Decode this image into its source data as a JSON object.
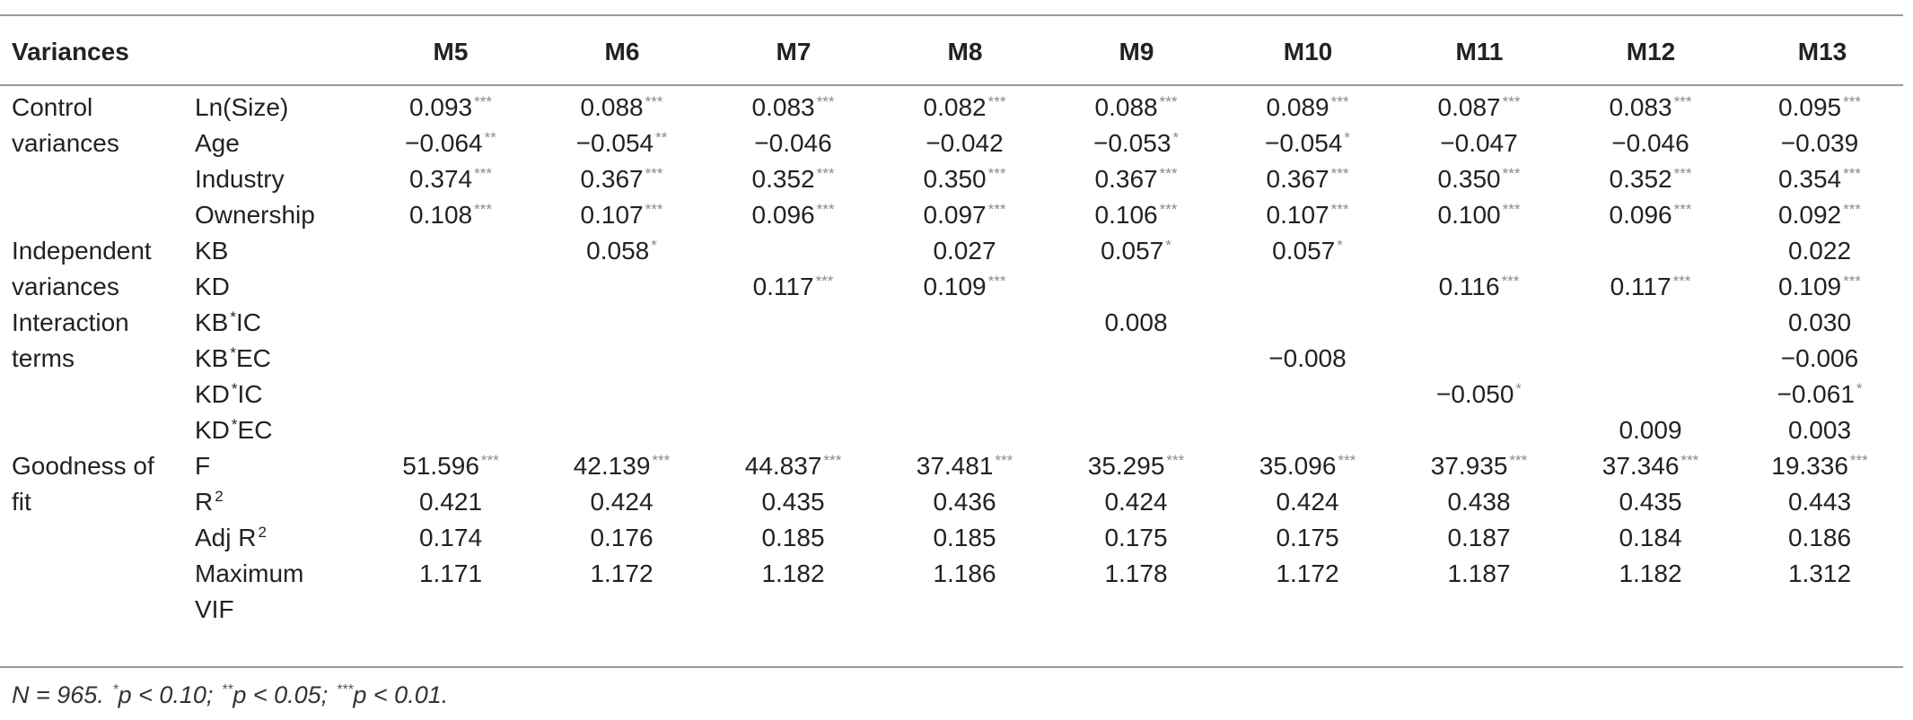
{
  "header": {
    "variances": "Variances",
    "models": [
      "M5",
      "M6",
      "M7",
      "M8",
      "M9",
      "M10",
      "M11",
      "M12",
      "M13"
    ]
  },
  "rows": [
    {
      "group": "Control",
      "label": "Ln(Size)",
      "cells": [
        [
          "0.093",
          "***"
        ],
        [
          "0.088",
          "***"
        ],
        [
          "0.083",
          "***"
        ],
        [
          "0.082",
          "***"
        ],
        [
          "0.088",
          "***"
        ],
        [
          "0.089",
          "***"
        ],
        [
          "0.087",
          "***"
        ],
        [
          "0.083",
          "***"
        ],
        [
          "0.095",
          "***"
        ]
      ]
    },
    {
      "group": "variances",
      "label": "Age",
      "cells": [
        [
          "−0.064",
          "**"
        ],
        [
          "−0.054",
          "**"
        ],
        [
          "−0.046",
          ""
        ],
        [
          "−0.042",
          ""
        ],
        [
          "−0.053",
          "*"
        ],
        [
          "−0.054",
          "*"
        ],
        [
          "−0.047",
          ""
        ],
        [
          "−0.046",
          ""
        ],
        [
          "−0.039",
          ""
        ]
      ]
    },
    {
      "group": "",
      "label": "Industry",
      "cells": [
        [
          "0.374",
          "***"
        ],
        [
          "0.367",
          "***"
        ],
        [
          "0.352",
          "***"
        ],
        [
          "0.350",
          "***"
        ],
        [
          "0.367",
          "***"
        ],
        [
          "0.367",
          "***"
        ],
        [
          "0.350",
          "***"
        ],
        [
          "0.352",
          "***"
        ],
        [
          "0.354",
          "***"
        ]
      ]
    },
    {
      "group": "",
      "label": "Ownership",
      "cells": [
        [
          "0.108",
          "***"
        ],
        [
          "0.107",
          "***"
        ],
        [
          "0.096",
          "***"
        ],
        [
          "0.097",
          "***"
        ],
        [
          "0.106",
          "***"
        ],
        [
          "0.107",
          "***"
        ],
        [
          "0.100",
          "***"
        ],
        [
          "0.096",
          "***"
        ],
        [
          "0.092",
          "***"
        ]
      ]
    },
    {
      "group": "Independent",
      "label": "KB",
      "cells": [
        [
          "",
          ""
        ],
        [
          "0.058",
          "*"
        ],
        [
          "",
          ""
        ],
        [
          "0.027",
          ""
        ],
        [
          "0.057",
          "*"
        ],
        [
          "0.057",
          "*"
        ],
        [
          "",
          ""
        ],
        [
          "",
          ""
        ],
        [
          "0.022",
          ""
        ]
      ]
    },
    {
      "group": "variances",
      "label": "KD",
      "cells": [
        [
          "",
          ""
        ],
        [
          "",
          ""
        ],
        [
          "0.117",
          "***"
        ],
        [
          "0.109",
          "***"
        ],
        [
          "",
          ""
        ],
        [
          "",
          ""
        ],
        [
          "0.116",
          "***"
        ],
        [
          "0.117",
          "***"
        ],
        [
          "0.109",
          "***"
        ]
      ]
    },
    {
      "group": "Interaction",
      "label": "KB*IC",
      "cells": [
        [
          "",
          ""
        ],
        [
          "",
          ""
        ],
        [
          "",
          ""
        ],
        [
          "",
          ""
        ],
        [
          "0.008",
          ""
        ],
        [
          "",
          ""
        ],
        [
          "",
          ""
        ],
        [
          "",
          ""
        ],
        [
          "0.030",
          ""
        ]
      ]
    },
    {
      "group": "terms",
      "label": "KB*EC",
      "cells": [
        [
          "",
          ""
        ],
        [
          "",
          ""
        ],
        [
          "",
          ""
        ],
        [
          "",
          ""
        ],
        [
          "",
          ""
        ],
        [
          "−0.008",
          ""
        ],
        [
          "",
          ""
        ],
        [
          "",
          ""
        ],
        [
          "−0.006",
          ""
        ]
      ]
    },
    {
      "group": "",
      "label": "KD*IC",
      "cells": [
        [
          "",
          ""
        ],
        [
          "",
          ""
        ],
        [
          "",
          ""
        ],
        [
          "",
          ""
        ],
        [
          "",
          ""
        ],
        [
          "",
          ""
        ],
        [
          "−0.050",
          "*"
        ],
        [
          "",
          ""
        ],
        [
          "−0.061",
          "*"
        ]
      ]
    },
    {
      "group": "",
      "label": "KD*EC",
      "cells": [
        [
          "",
          ""
        ],
        [
          "",
          ""
        ],
        [
          "",
          ""
        ],
        [
          "",
          ""
        ],
        [
          "",
          ""
        ],
        [
          "",
          ""
        ],
        [
          "",
          ""
        ],
        [
          "0.009",
          ""
        ],
        [
          "0.003",
          ""
        ]
      ]
    },
    {
      "group": "Goodness of",
      "label": "F",
      "cells": [
        [
          "51.596",
          "***"
        ],
        [
          "42.139",
          "***"
        ],
        [
          "44.837",
          "***"
        ],
        [
          "37.481",
          "***"
        ],
        [
          "35.295",
          "***"
        ],
        [
          "35.096",
          "***"
        ],
        [
          "37.935",
          "***"
        ],
        [
          "37.346",
          "***"
        ],
        [
          "19.336",
          "***"
        ]
      ]
    },
    {
      "group": "fit",
      "label": "R2",
      "cells": [
        [
          "0.421",
          ""
        ],
        [
          "0.424",
          ""
        ],
        [
          "0.435",
          ""
        ],
        [
          "0.436",
          ""
        ],
        [
          "0.424",
          ""
        ],
        [
          "0.424",
          ""
        ],
        [
          "0.438",
          ""
        ],
        [
          "0.435",
          ""
        ],
        [
          "0.443",
          ""
        ]
      ]
    },
    {
      "group": "",
      "label": "Adj R2",
      "cells": [
        [
          "0.174",
          ""
        ],
        [
          "0.176",
          ""
        ],
        [
          "0.185",
          ""
        ],
        [
          "0.185",
          ""
        ],
        [
          "0.175",
          ""
        ],
        [
          "0.175",
          ""
        ],
        [
          "0.187",
          ""
        ],
        [
          "0.184",
          ""
        ],
        [
          "0.186",
          ""
        ]
      ]
    },
    {
      "group": "",
      "label": "Maximum",
      "cells": [
        [
          "1.171",
          ""
        ],
        [
          "1.172",
          ""
        ],
        [
          "1.182",
          ""
        ],
        [
          "1.186",
          ""
        ],
        [
          "1.178",
          ""
        ],
        [
          "1.172",
          ""
        ],
        [
          "1.187",
          ""
        ],
        [
          "1.182",
          ""
        ],
        [
          "1.312",
          ""
        ]
      ]
    },
    {
      "group": "",
      "label": "VIF",
      "cells": [
        [
          "",
          ""
        ],
        [
          "",
          ""
        ],
        [
          "",
          ""
        ],
        [
          "",
          ""
        ],
        [
          "",
          ""
        ],
        [
          "",
          ""
        ],
        [
          "",
          ""
        ],
        [
          "",
          ""
        ],
        [
          "",
          ""
        ]
      ]
    }
  ],
  "note": "N = 965. *p < 0.10; **p < 0.05; ***p < 0.01."
}
